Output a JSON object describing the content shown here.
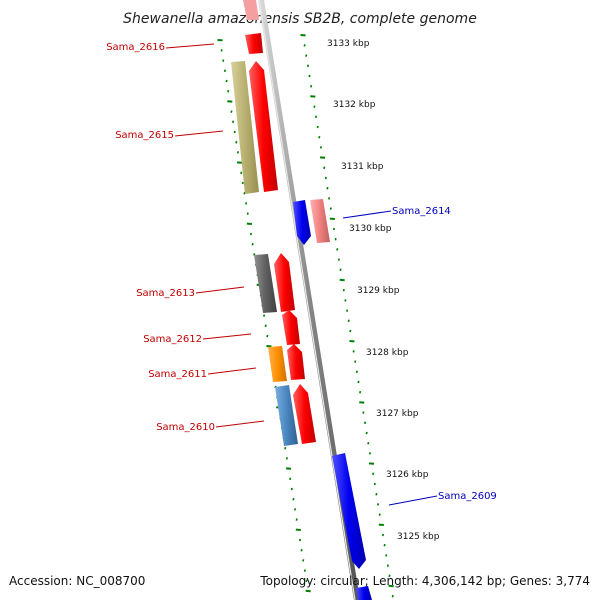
{
  "title": "Shewanella amazonensis SB2B, complete genome",
  "kbp_labels": [
    "3133 kbp",
    "3132 kbp",
    "3131 kbp",
    "3130 kbp",
    "3129 kbp",
    "3128 kbp",
    "3127 kbp",
    "3126 kbp",
    "3125 kbp"
  ],
  "genes_left": [
    "Sama_2616",
    "Sama_2615",
    "Sama_2613",
    "Sama_2612",
    "Sama_2611",
    "Sama_2610"
  ],
  "genes_right": [
    "Sama_2614",
    "Sama_2609"
  ],
  "footer": {
    "accession": "Accession: NC_008700",
    "stats": "Topology: circular; Length: 4,306,142 bp; Genes: 3,774"
  },
  "colors": {
    "forward_strand": "#ff0000",
    "reverse_strand": "#0000ee",
    "backbone": "#888888",
    "ticks": "#008000",
    "left_label": "#c00000",
    "right_label": "#0000c0",
    "cog_tan": "#b8b070",
    "cog_gray": "#606060",
    "cog_orange": "#ff9000",
    "cog_steelblue": "#4a86c0",
    "cog_pink": "#f08080"
  }
}
